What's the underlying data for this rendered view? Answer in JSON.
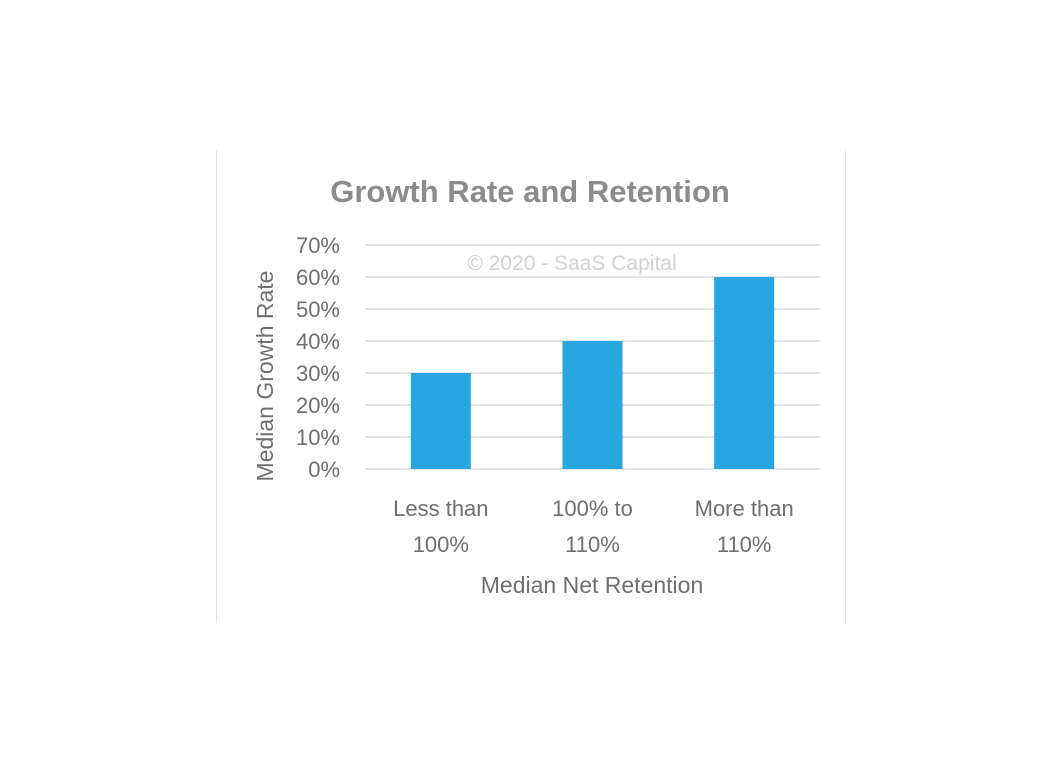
{
  "chart_data": {
    "type": "bar",
    "title": "Growth Rate and Retention",
    "watermark": "© 2020 - SaaS Capital",
    "xlabel": "Median Net Retention",
    "ylabel": "Median Growth Rate",
    "categories": [
      [
        "Less than",
        "100%"
      ],
      [
        "100% to",
        "110%"
      ],
      [
        "More than",
        "110%"
      ]
    ],
    "values": [
      30,
      40,
      60
    ],
    "value_unit": "%",
    "ylim": [
      0,
      70
    ],
    "yticks": [
      "0%",
      "10%",
      "20%",
      "30%",
      "40%",
      "50%",
      "60%",
      "70%"
    ],
    "grid": true,
    "bar_color": "#27a6df",
    "grid_color": "#d9d9d9"
  }
}
